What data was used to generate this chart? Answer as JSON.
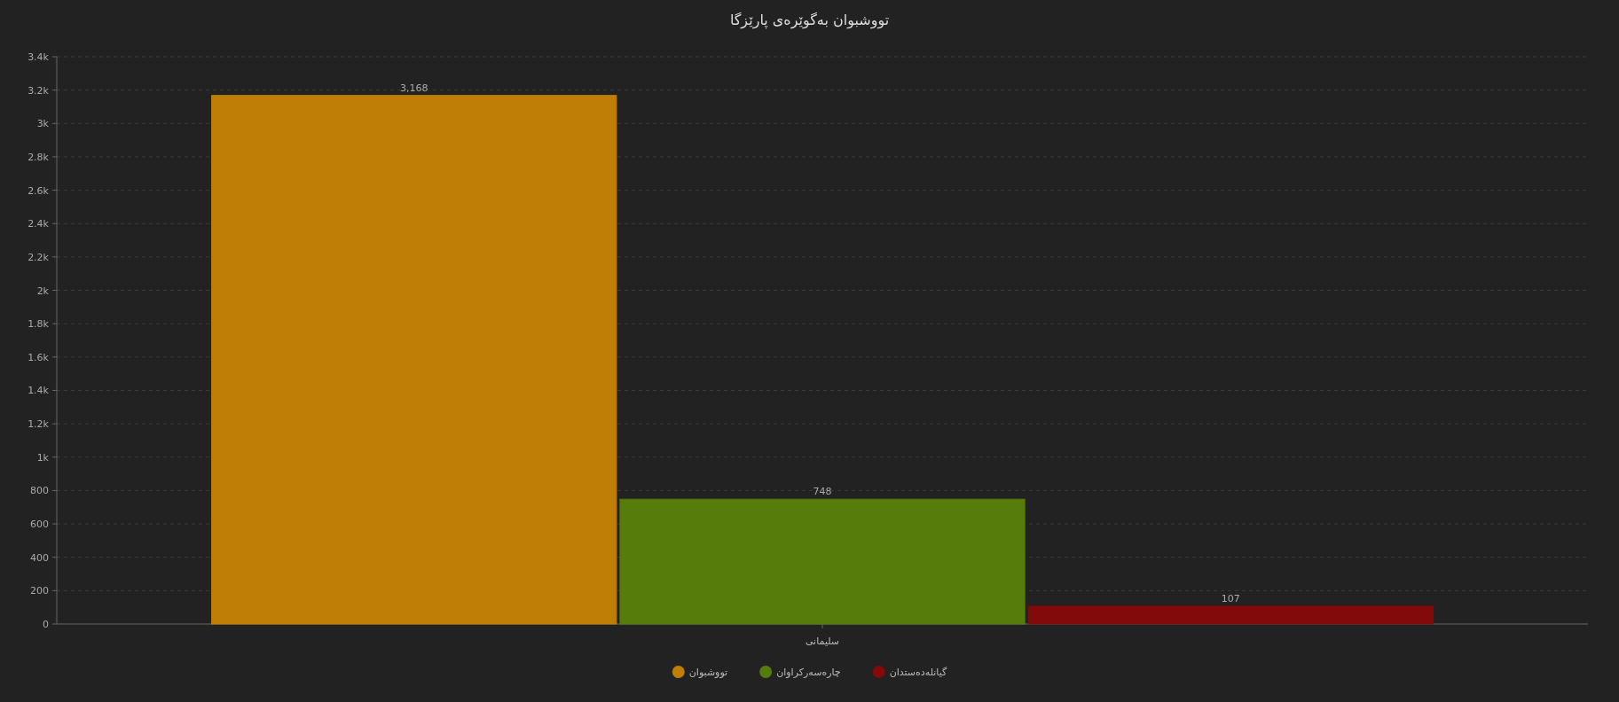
{
  "chart_data": {
    "type": "bar",
    "title": "تووشبوان بەگوێرەی پارێزگا",
    "categories": [
      "سلیمانی"
    ],
    "series": [
      {
        "name": "تووشبوان",
        "color": "#bf7f07",
        "values": [
          3168
        ],
        "value_labels": [
          "3,168"
        ]
      },
      {
        "name": "چارەسەرکراوان",
        "color": "#567d0b",
        "values": [
          748
        ],
        "value_labels": [
          "748"
        ]
      },
      {
        "name": "گیانلەدەستدان",
        "color": "#820a0a",
        "values": [
          107
        ],
        "value_labels": [
          "107"
        ]
      }
    ],
    "ylim": [
      0,
      3400
    ],
    "yticks": [
      0,
      200,
      400,
      600,
      800,
      {
        "value": 1000,
        "label": "1k"
      },
      {
        "value": 1200,
        "label": "1.2k"
      },
      {
        "value": 1400,
        "label": "1.4k"
      },
      {
        "value": 1600,
        "label": "1.6k"
      },
      {
        "value": 1800,
        "label": "1.8k"
      },
      {
        "value": 2000,
        "label": "2k"
      },
      {
        "value": 2200,
        "label": "2.2k"
      },
      {
        "value": 2400,
        "label": "2.4k"
      },
      {
        "value": 2600,
        "label": "2.6k"
      },
      {
        "value": 2800,
        "label": "2.8k"
      },
      {
        "value": 3000,
        "label": "3k"
      },
      {
        "value": 3200,
        "label": "3.2k"
      },
      {
        "value": 3400,
        "label": "3.4k"
      }
    ],
    "grid": "y",
    "legend": "bottom"
  }
}
